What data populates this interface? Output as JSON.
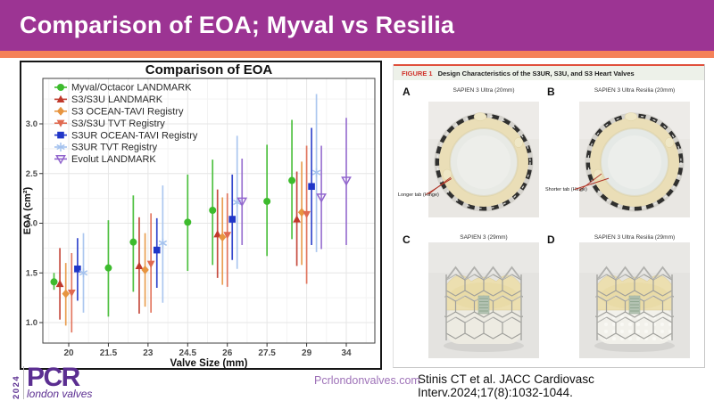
{
  "slide": {
    "title": "Comparison of EOA; Myval vs Resilia"
  },
  "chart_data": {
    "type": "scatter",
    "subtype": "pointrange",
    "title": "Comparison of EOA",
    "xlabel": "Valve Size (mm)",
    "ylabel": "EOA (cm²)",
    "categories": [
      "20",
      "21.5",
      "23",
      "24.5",
      "26",
      "27.5",
      "29",
      "34"
    ],
    "yticks": [
      1.0,
      1.5,
      2.0,
      2.5,
      3.0
    ],
    "ylim": [
      0.79,
      3.46
    ],
    "grid": "major+minor",
    "legend_position": "inside-top-left",
    "series": [
      {
        "name": "Myval/Octacor LANDMARK",
        "marker": "circle",
        "color": "#3dbb2d",
        "points": [
          {
            "x": "20",
            "y": 1.41,
            "lo": 1.33,
            "hi": 1.5
          },
          {
            "x": "21.5",
            "y": 1.55,
            "lo": 1.06,
            "hi": 2.03
          },
          {
            "x": "23",
            "y": 1.81,
            "lo": 1.31,
            "hi": 2.28
          },
          {
            "x": "24.5",
            "y": 2.01,
            "lo": 1.52,
            "hi": 2.49
          },
          {
            "x": "26",
            "y": 2.13,
            "lo": 1.58,
            "hi": 2.64
          },
          {
            "x": "27.5",
            "y": 2.22,
            "lo": 1.67,
            "hi": 2.79
          },
          {
            "x": "29",
            "y": 2.43,
            "lo": 1.84,
            "hi": 3.04
          }
        ]
      },
      {
        "name": "S3/S3U LANDMARK",
        "marker": "triangle-up",
        "color": "#c0392b",
        "points": [
          {
            "x": "20",
            "y": 1.39,
            "lo": 1.03,
            "hi": 1.75
          },
          {
            "x": "23",
            "y": 1.57,
            "lo": 1.09,
            "hi": 2.06
          },
          {
            "x": "26",
            "y": 1.89,
            "lo": 1.45,
            "hi": 2.34
          },
          {
            "x": "29",
            "y": 2.04,
            "lo": 1.57,
            "hi": 2.52
          }
        ]
      },
      {
        "name": "S3 OCEAN-TAVI Registry",
        "marker": "diamond",
        "color": "#e79540",
        "points": [
          {
            "x": "20",
            "y": 1.29,
            "lo": 0.97,
            "hi": 1.6
          },
          {
            "x": "23",
            "y": 1.53,
            "lo": 1.16,
            "hi": 1.9
          },
          {
            "x": "26",
            "y": 1.86,
            "lo": 1.38,
            "hi": 2.26
          },
          {
            "x": "29",
            "y": 2.11,
            "lo": 1.58,
            "hi": 2.62
          }
        ]
      },
      {
        "name": "S3/S3U TVT Registry",
        "marker": "triangle-down",
        "color": "#e06a50",
        "points": [
          {
            "x": "20",
            "y": 1.3,
            "lo": 0.9,
            "hi": 1.7
          },
          {
            "x": "23",
            "y": 1.59,
            "lo": 1.1,
            "hi": 2.1
          },
          {
            "x": "26",
            "y": 1.88,
            "lo": 1.36,
            "hi": 2.3
          },
          {
            "x": "29",
            "y": 2.09,
            "lo": 1.39,
            "hi": 2.78
          }
        ]
      },
      {
        "name": "S3UR OCEAN-TAVI Registry",
        "marker": "square",
        "color": "#2036c8",
        "points": [
          {
            "x": "20",
            "y": 1.54,
            "lo": 1.22,
            "hi": 1.85
          },
          {
            "x": "23",
            "y": 1.73,
            "lo": 1.35,
            "hi": 2.05
          },
          {
            "x": "26",
            "y": 2.04,
            "lo": 1.63,
            "hi": 2.49
          },
          {
            "x": "29",
            "y": 2.37,
            "lo": 1.78,
            "hi": 2.96
          }
        ]
      },
      {
        "name": "S3UR TVT Registry",
        "marker": "asterisk",
        "color": "#a4c2ee",
        "points": [
          {
            "x": "20",
            "y": 1.5,
            "lo": 1.1,
            "hi": 1.9
          },
          {
            "x": "23",
            "y": 1.8,
            "lo": 1.2,
            "hi": 2.38
          },
          {
            "x": "26",
            "y": 2.21,
            "lo": 1.54,
            "hi": 2.88
          },
          {
            "x": "29",
            "y": 2.51,
            "lo": 1.71,
            "hi": 3.3
          }
        ]
      },
      {
        "name": "Evolut LANDMARK",
        "marker": "triangle-down-open",
        "color": "#9165cd",
        "points": [
          {
            "x": "26",
            "y": 2.22,
            "lo": 1.78,
            "hi": 2.65
          },
          {
            "x": "29",
            "y": 2.26,
            "lo": 1.74,
            "hi": 2.78
          },
          {
            "x": "34",
            "y": 2.43,
            "lo": 1.78,
            "hi": 3.06
          }
        ]
      }
    ]
  },
  "figure": {
    "header_label": "FIGURE 1",
    "header_title": "Design Characteristics of the S3UR, S3U, and S3 Heart Valves",
    "panels": [
      {
        "letter": "A",
        "caption": "SAPIEN 3 Ultra (20mm)",
        "annotation": "Longer tab (Hinge)"
      },
      {
        "letter": "B",
        "caption": "SAPIEN 3 Ultra Resilia (20mm)",
        "annotation": "Shorter tab (Hinge)"
      },
      {
        "letter": "C",
        "caption": "SAPIEN 3 (29mm)"
      },
      {
        "letter": "D",
        "caption": "SAPIEN 3 Ultra Resilia (29mm)"
      }
    ]
  },
  "footer": {
    "website": "Pcrlondonvalves.com",
    "citation": "Stinis CT et al. JACC Cardiovasc Interv.2024;17(8):1032-1044.",
    "logo": {
      "year": "2024",
      "brand": "PCR",
      "tagline": "london valves"
    }
  },
  "colors": {
    "header_bg": "#9c3493",
    "stripe": "#f58158",
    "brand_purple": "#5b2e91",
    "figure_label_red": "#d0342c",
    "figure_topline": "#e0503c",
    "website_text": "#9e72b8"
  }
}
